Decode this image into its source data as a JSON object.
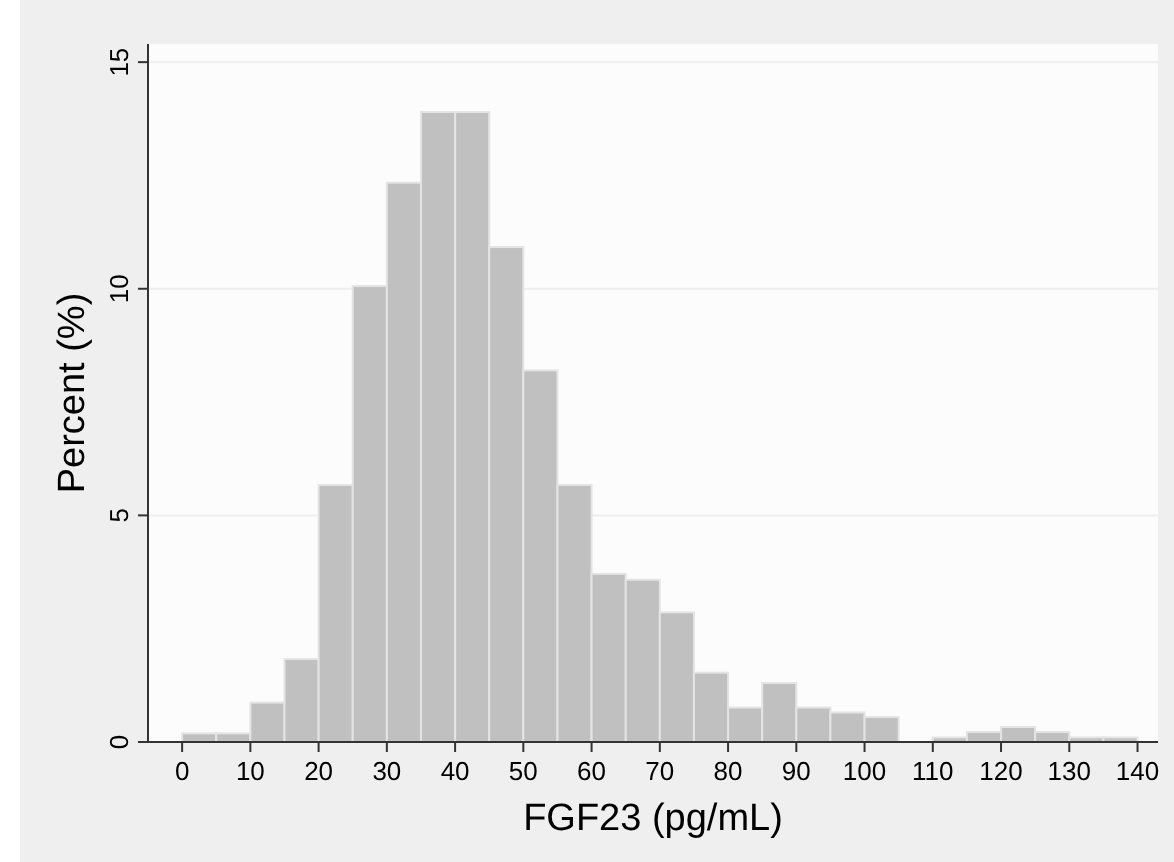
{
  "chart_data": {
    "type": "histogram",
    "xlabel": "FGF23 (pg/mL)",
    "ylabel": "Percent (%)",
    "bins": [
      0,
      5,
      10,
      15,
      20,
      25,
      30,
      35,
      40,
      45,
      50,
      55,
      60,
      65,
      70,
      75,
      80,
      85,
      90,
      95,
      100,
      105,
      110,
      115,
      120,
      125,
      130,
      135,
      140
    ],
    "values": [
      0.19,
      0.19,
      0.87,
      1.83,
      5.67,
      10.06,
      12.34,
      13.9,
      13.9,
      10.92,
      8.2,
      5.67,
      3.71,
      3.58,
      2.86,
      1.53,
      0.76,
      1.3,
      0.76,
      0.65,
      0.55,
      0,
      0.1,
      0.22,
      0.33,
      0.22,
      0.1,
      0.1
    ],
    "color": "#c0c0c0",
    "xlim": [
      -5,
      143
    ],
    "ylim": [
      0,
      15.4
    ],
    "xticks": [
      0,
      10,
      20,
      30,
      40,
      50,
      60,
      70,
      80,
      90,
      100,
      110,
      120,
      130,
      140
    ],
    "yticks": [
      0,
      5,
      10,
      15
    ],
    "grid": "y"
  }
}
